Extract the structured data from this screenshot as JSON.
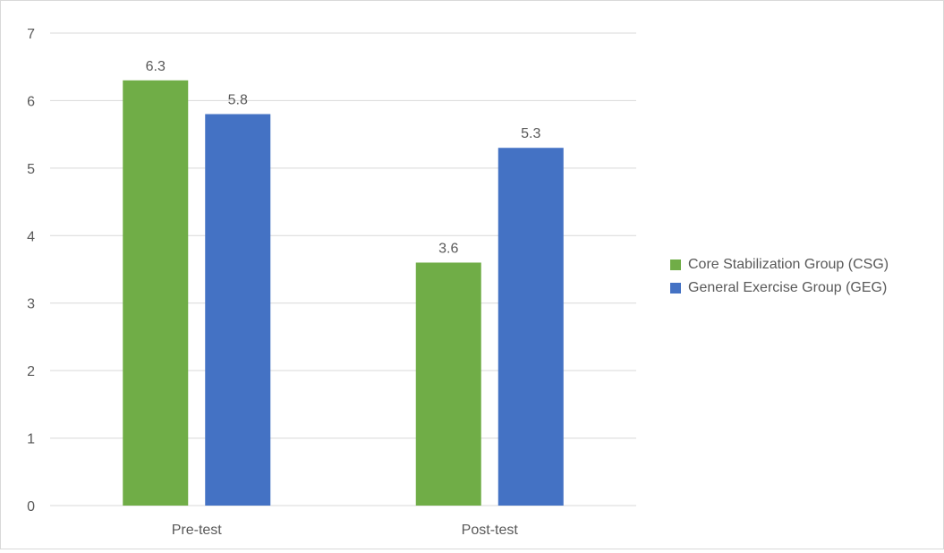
{
  "chart_data": {
    "type": "bar",
    "categories": [
      "Pre-test",
      "Post-test"
    ],
    "series": [
      {
        "name": "Core Stabilization Group (CSG)",
        "values": [
          6.3,
          3.6
        ],
        "color": "#70ad47"
      },
      {
        "name": "General Exercise Group (GEG)",
        "values": [
          5.8,
          5.3
        ],
        "color": "#4472c4"
      }
    ],
    "ylim": [
      0,
      7
    ],
    "yticks": [
      0,
      1,
      2,
      3,
      4,
      5,
      6,
      7
    ],
    "grid": true,
    "legend_position": "right",
    "data_labels": [
      "6.3",
      "5.8",
      "3.6",
      "5.3"
    ],
    "gridline_color": "#d9d9d9"
  }
}
